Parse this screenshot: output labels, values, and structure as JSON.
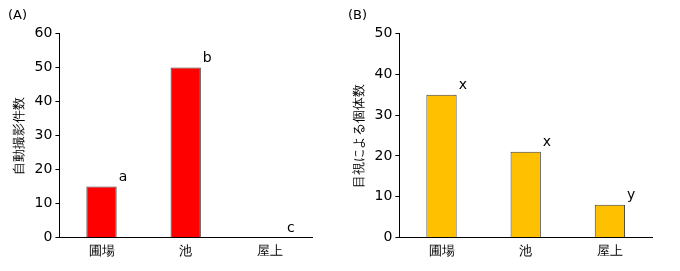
{
  "chart_data": [
    {
      "type": "bar",
      "title": "(A)",
      "ylabel": "自動撮影件数",
      "categories": [
        "圃場",
        "池",
        "屋上"
      ],
      "values": [
        15,
        50,
        0
      ],
      "annotations": [
        "a",
        "b",
        "c"
      ],
      "color": "#ff0000",
      "ylim": [
        0,
        60
      ],
      "yticks": [
        0,
        10,
        20,
        30,
        40,
        50,
        60
      ],
      "grid": false
    },
    {
      "type": "bar",
      "title": "(B)",
      "ylabel": "目視による個体数",
      "categories": [
        "圃場",
        "池",
        "屋上"
      ],
      "values": [
        35,
        21,
        8
      ],
      "annotations": [
        "x",
        "x",
        "y"
      ],
      "color": "#ffc000",
      "ylim": [
        0,
        50
      ],
      "yticks": [
        0,
        10,
        20,
        30,
        40,
        50
      ],
      "grid": false
    }
  ]
}
